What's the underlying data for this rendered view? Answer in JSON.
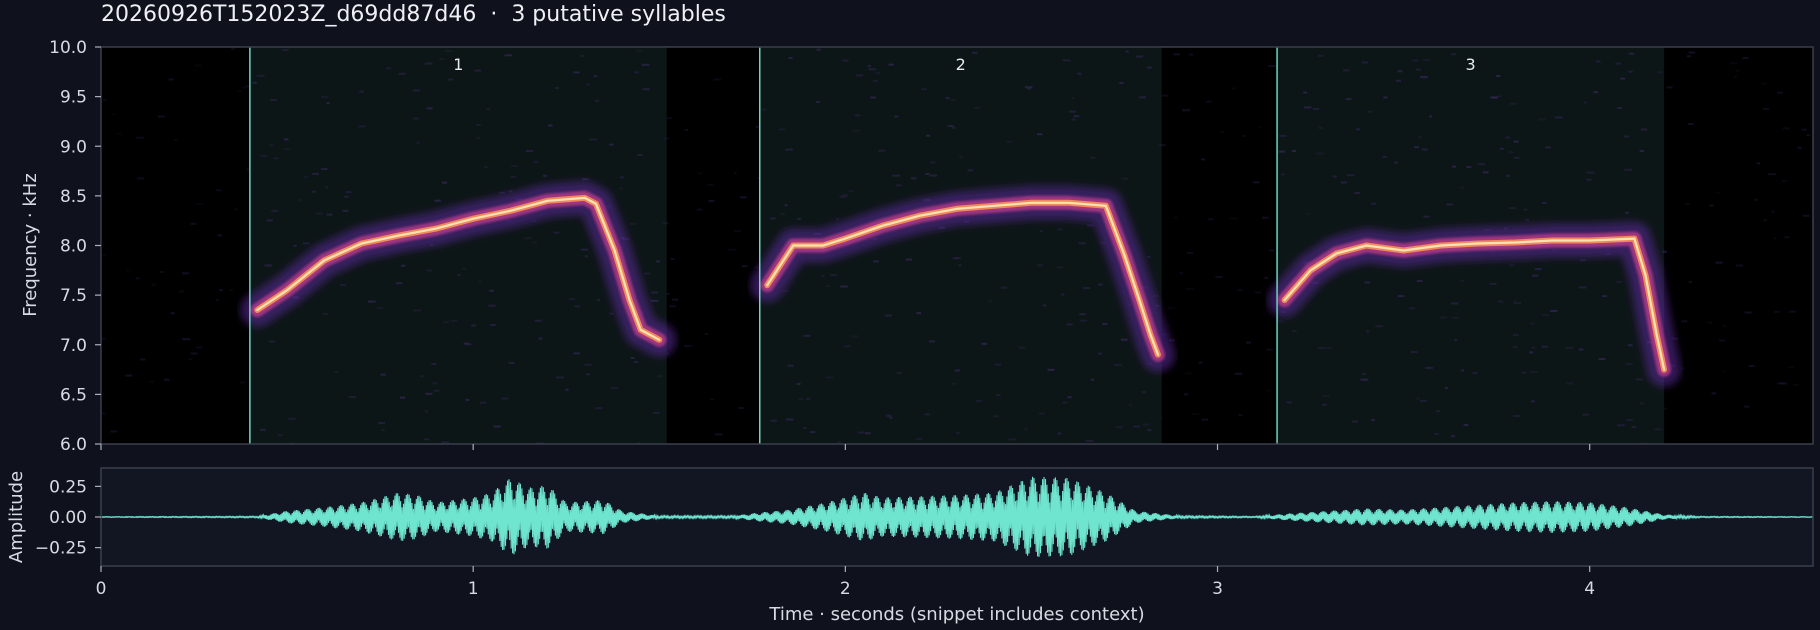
{
  "header": {
    "recording_id": "20260926T152023Z_d69dd87d46",
    "separator": "·",
    "summary": "3 putative syllables"
  },
  "colors": {
    "background": "#0f121d",
    "panel": "#000000",
    "waveform": "#6fe5d0",
    "syllable_boundary": "#6fd3bf",
    "spectrogram_colormap": "magma"
  },
  "chart_data": [
    {
      "type": "heatmap",
      "name": "spectrogram",
      "ylabel": "Frequency · kHz",
      "xlim": [
        0,
        4.6
      ],
      "ylim": [
        6.0,
        10.0
      ],
      "yticks": [
        6.0,
        6.5,
        7.0,
        7.5,
        8.0,
        8.5,
        9.0,
        9.5,
        10.0
      ],
      "xticks": [
        0,
        1,
        2,
        3,
        4
      ],
      "syllables": [
        {
          "label": "1",
          "start": 0.4,
          "end": 1.52,
          "contour": [
            [
              0.42,
              7.35
            ],
            [
              0.5,
              7.55
            ],
            [
              0.6,
              7.85
            ],
            [
              0.7,
              8.02
            ],
            [
              0.8,
              8.1
            ],
            [
              0.9,
              8.17
            ],
            [
              1.0,
              8.27
            ],
            [
              1.1,
              8.35
            ],
            [
              1.2,
              8.45
            ],
            [
              1.3,
              8.48
            ],
            [
              1.33,
              8.42
            ],
            [
              1.38,
              7.95
            ],
            [
              1.42,
              7.45
            ],
            [
              1.45,
              7.15
            ],
            [
              1.5,
              7.05
            ]
          ]
        },
        {
          "label": "2",
          "start": 1.77,
          "end": 2.85,
          "contour": [
            [
              1.79,
              7.6
            ],
            [
              1.86,
              8.0
            ],
            [
              1.94,
              8.0
            ],
            [
              2.0,
              8.07
            ],
            [
              2.1,
              8.2
            ],
            [
              2.2,
              8.3
            ],
            [
              2.3,
              8.37
            ],
            [
              2.4,
              8.4
            ],
            [
              2.5,
              8.43
            ],
            [
              2.6,
              8.43
            ],
            [
              2.7,
              8.4
            ],
            [
              2.75,
              7.9
            ],
            [
              2.79,
              7.45
            ],
            [
              2.82,
              7.1
            ],
            [
              2.84,
              6.9
            ]
          ]
        },
        {
          "label": "3",
          "start": 3.16,
          "end": 4.2,
          "contour": [
            [
              3.18,
              7.45
            ],
            [
              3.25,
              7.75
            ],
            [
              3.32,
              7.92
            ],
            [
              3.4,
              8.0
            ],
            [
              3.5,
              7.95
            ],
            [
              3.6,
              8.0
            ],
            [
              3.7,
              8.02
            ],
            [
              3.8,
              8.03
            ],
            [
              3.9,
              8.05
            ],
            [
              4.0,
              8.05
            ],
            [
              4.12,
              8.07
            ],
            [
              4.15,
              7.7
            ],
            [
              4.18,
              7.1
            ],
            [
              4.2,
              6.75
            ]
          ]
        }
      ]
    },
    {
      "type": "line",
      "name": "waveform",
      "ylabel": "Amplitude",
      "xlabel": "Time · seconds (snippet includes context)",
      "xlim": [
        0,
        4.6
      ],
      "ylim": [
        -0.4,
        0.4
      ],
      "yticks": [
        0.25,
        0.0,
        -0.25
      ],
      "yticklabels": [
        "0.25",
        "0.00",
        "−0.25"
      ],
      "xticks": [
        0,
        1,
        2,
        3,
        4
      ],
      "envelope": {
        "x": [
          0,
          0.42,
          0.5,
          0.6,
          0.7,
          0.8,
          0.85,
          0.9,
          1.0,
          1.05,
          1.1,
          1.15,
          1.2,
          1.25,
          1.35,
          1.4,
          1.5,
          1.7,
          1.78,
          1.85,
          1.95,
          2.05,
          2.1,
          2.2,
          2.3,
          2.4,
          2.5,
          2.6,
          2.7,
          2.78,
          2.9,
          3.1,
          3.2,
          3.3,
          3.4,
          3.5,
          3.6,
          3.7,
          3.8,
          3.9,
          4.0,
          4.1,
          4.2,
          4.3,
          4.6
        ],
        "amp": [
          0.003,
          0.006,
          0.05,
          0.08,
          0.12,
          0.2,
          0.18,
          0.12,
          0.16,
          0.2,
          0.32,
          0.24,
          0.26,
          0.12,
          0.14,
          0.05,
          0.01,
          0.01,
          0.04,
          0.06,
          0.12,
          0.2,
          0.16,
          0.17,
          0.18,
          0.2,
          0.33,
          0.32,
          0.2,
          0.05,
          0.01,
          0.005,
          0.03,
          0.05,
          0.07,
          0.06,
          0.08,
          0.1,
          0.12,
          0.13,
          0.12,
          0.08,
          0.02,
          0.005,
          0.003
        ]
      }
    }
  ]
}
